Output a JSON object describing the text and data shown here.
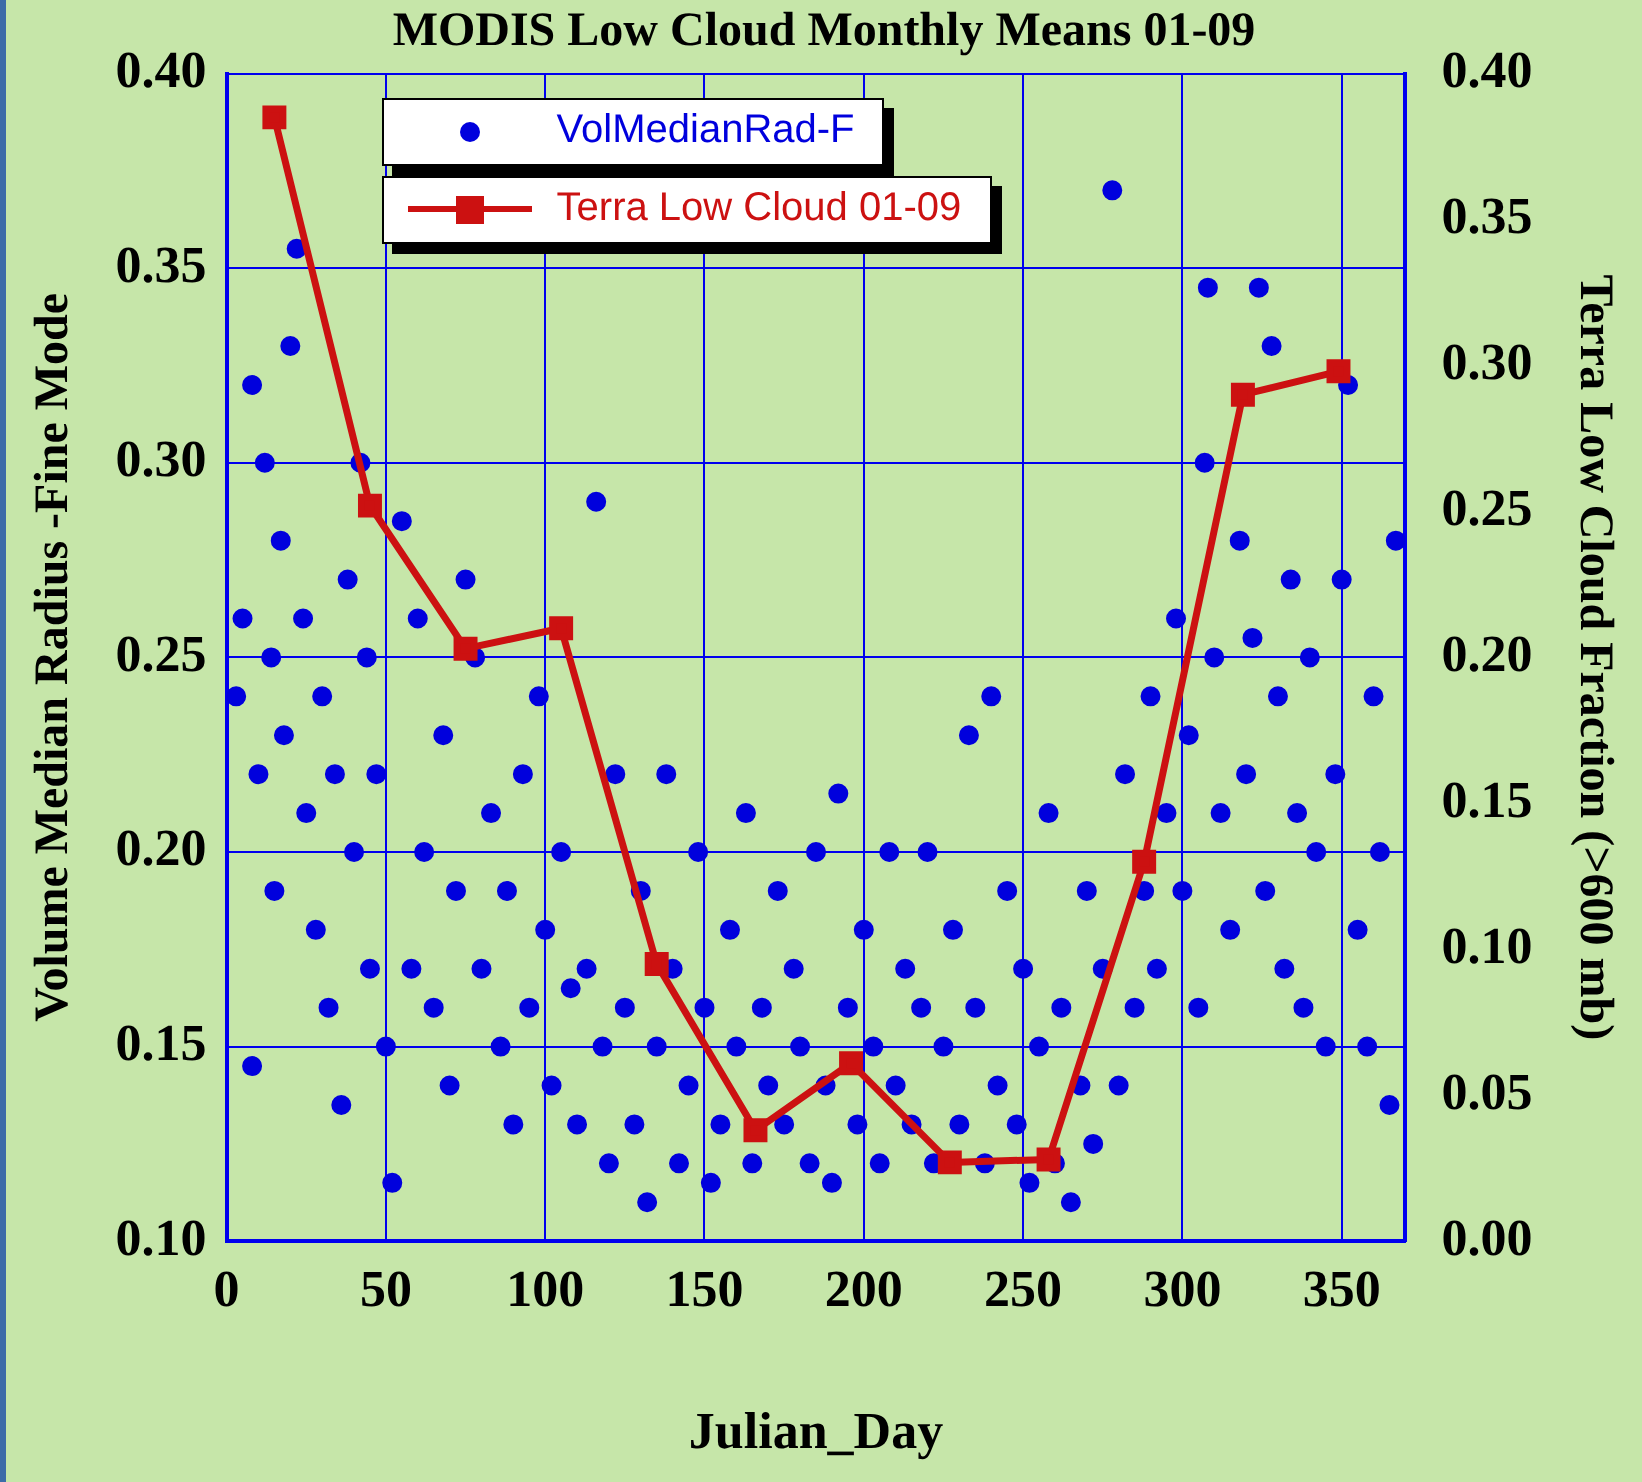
{
  "chart_data": {
    "type": "scatter",
    "title": "MODIS Low Cloud Monthly Means 01-09",
    "xlabel": "Julian_Day",
    "ylabel": "Volume Median Radius -Fine Mode",
    "y2label": "Terra Low Cloud Fraction (>600 mb)",
    "xlim": [
      0,
      370
    ],
    "xticks": [
      0,
      50,
      100,
      150,
      200,
      250,
      300,
      350
    ],
    "ylim": [
      0.1,
      0.4
    ],
    "yticks": [
      {
        "value": 0.1,
        "label": "0.10"
      },
      {
        "value": 0.15,
        "label": "0.15"
      },
      {
        "value": 0.2,
        "label": "0.20"
      },
      {
        "value": 0.25,
        "label": "0.25"
      },
      {
        "value": 0.3,
        "label": "0.30"
      },
      {
        "value": 0.35,
        "label": "0.35"
      },
      {
        "value": 0.4,
        "label": "0.40"
      }
    ],
    "y2lim": [
      0,
      0.4
    ],
    "y2ticks": [
      {
        "value": 0,
        "label": "0.00"
      },
      {
        "value": 0.05,
        "label": "0.05"
      },
      {
        "value": 0.1,
        "label": "0.10"
      },
      {
        "value": 0.15,
        "label": "0.15"
      },
      {
        "value": 0.2,
        "label": "0.20"
      },
      {
        "value": 0.25,
        "label": "0.25"
      },
      {
        "value": 0.3,
        "label": "0.30"
      },
      {
        "value": 0.35,
        "label": "0.35"
      },
      {
        "value": 0.4,
        "label": "0.40"
      }
    ],
    "grid": true,
    "legend": "top left",
    "series": [
      {
        "type": "scatter",
        "name": "VolMedianRad-F",
        "color": "#0000dd",
        "marker": "circle",
        "x": [
          3,
          5,
          8,
          8,
          10,
          12,
          14,
          15,
          17,
          18,
          20,
          22,
          24,
          25,
          28,
          30,
          32,
          34,
          36,
          38,
          40,
          42,
          44,
          45,
          47,
          50,
          52,
          55,
          58,
          60,
          62,
          65,
          68,
          70,
          72,
          75,
          78,
          80,
          83,
          86,
          88,
          90,
          93,
          95,
          98,
          100,
          102,
          105,
          108,
          110,
          113,
          116,
          118,
          120,
          122,
          125,
          128,
          130,
          132,
          135,
          138,
          140,
          142,
          145,
          148,
          150,
          152,
          155,
          158,
          160,
          163,
          165,
          168,
          170,
          173,
          175,
          178,
          180,
          183,
          185,
          188,
          190,
          192,
          195,
          198,
          200,
          203,
          205,
          208,
          210,
          213,
          215,
          218,
          220,
          222,
          225,
          228,
          230,
          233,
          235,
          238,
          240,
          242,
          245,
          248,
          250,
          252,
          255,
          258,
          260,
          262,
          265,
          268,
          270,
          272,
          275,
          278,
          280,
          282,
          285,
          288,
          290,
          292,
          295,
          298,
          300,
          302,
          305,
          307,
          308,
          310,
          312,
          315,
          318,
          320,
          322,
          324,
          326,
          328,
          330,
          332,
          334,
          336,
          338,
          340,
          342,
          345,
          348,
          350,
          352,
          355,
          358,
          360,
          362,
          365,
          367
        ],
        "values": [
          0.24,
          0.26,
          0.32,
          0.145,
          0.22,
          0.3,
          0.25,
          0.19,
          0.28,
          0.23,
          0.33,
          0.355,
          0.26,
          0.21,
          0.18,
          0.24,
          0.16,
          0.22,
          0.135,
          0.27,
          0.2,
          0.3,
          0.25,
          0.17,
          0.22,
          0.15,
          0.115,
          0.285,
          0.17,
          0.26,
          0.2,
          0.16,
          0.23,
          0.14,
          0.19,
          0.27,
          0.25,
          0.17,
          0.21,
          0.15,
          0.19,
          0.13,
          0.22,
          0.16,
          0.24,
          0.18,
          0.14,
          0.2,
          0.165,
          0.13,
          0.17,
          0.29,
          0.15,
          0.12,
          0.22,
          0.16,
          0.13,
          0.19,
          0.11,
          0.15,
          0.22,
          0.17,
          0.12,
          0.14,
          0.2,
          0.16,
          0.115,
          0.13,
          0.18,
          0.15,
          0.21,
          0.12,
          0.16,
          0.14,
          0.19,
          0.13,
          0.17,
          0.15,
          0.12,
          0.2,
          0.14,
          0.115,
          0.215,
          0.16,
          0.13,
          0.18,
          0.15,
          0.12,
          0.2,
          0.14,
          0.17,
          0.13,
          0.16,
          0.2,
          0.12,
          0.15,
          0.18,
          0.13,
          0.23,
          0.16,
          0.12,
          0.24,
          0.14,
          0.19,
          0.13,
          0.17,
          0.115,
          0.15,
          0.21,
          0.12,
          0.16,
          0.11,
          0.14,
          0.19,
          0.125,
          0.17,
          0.37,
          0.14,
          0.22,
          0.16,
          0.19,
          0.24,
          0.17,
          0.21,
          0.26,
          0.19,
          0.23,
          0.16,
          0.3,
          0.345,
          0.25,
          0.21,
          0.18,
          0.28,
          0.22,
          0.255,
          0.345,
          0.19,
          0.33,
          0.24,
          0.17,
          0.27,
          0.21,
          0.16,
          0.25,
          0.2,
          0.15,
          0.22,
          0.27,
          0.32,
          0.18,
          0.15,
          0.24,
          0.2,
          0.135,
          0.28
        ]
      },
      {
        "type": "line",
        "name": "Terra Low Cloud 01-09",
        "color": "#cc1111",
        "marker": "square",
        "axis": "y2",
        "line_style": "solid",
        "x": [
          15,
          45,
          75,
          105,
          135,
          166,
          196,
          227,
          258,
          288,
          319,
          349
        ],
        "values": [
          0.385,
          0.252,
          0.203,
          0.21,
          0.095,
          0.038,
          0.061,
          0.027,
          0.028,
          0.13,
          0.29,
          0.298
        ]
      }
    ]
  }
}
